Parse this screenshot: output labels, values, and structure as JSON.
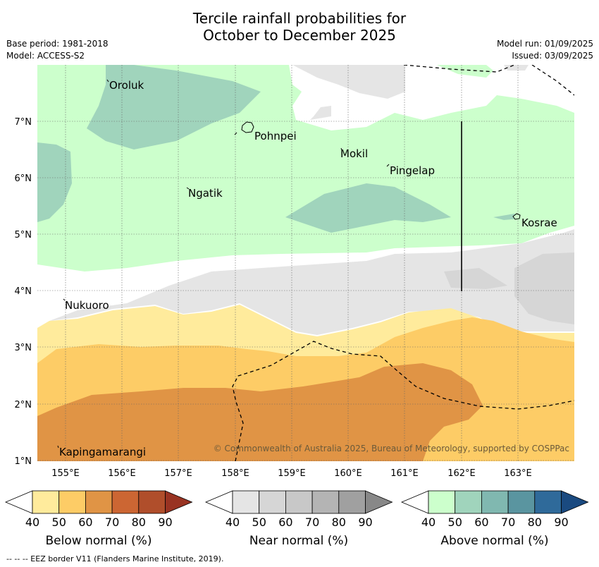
{
  "title_line1": "Tercile rainfall probabilities for",
  "title_line2": "October to December 2025",
  "meta": {
    "base_period": "Base period: 1981-2018",
    "model": "Model: ACCESS-S2",
    "model_run": "Model run: 01/09/2025",
    "issued": "Issued: 03/09/2025"
  },
  "map": {
    "lon_ticks": [
      "155°E",
      "156°E",
      "157°E",
      "158°E",
      "159°E",
      "160°E",
      "161°E",
      "162°E",
      "163°E"
    ],
    "lat_ticks": [
      "7°N",
      "6°N",
      "5°N",
      "4°N",
      "3°N",
      "2°N",
      "1°N"
    ],
    "places": [
      "Oroluk",
      "Pohnpei",
      "Mokil",
      "Pingelap",
      "Ngatik",
      "Kosrae",
      "Nukuoro",
      "Kapingamarangi"
    ],
    "copyright": "© Commonwealth of Australia 2025, Bureau of Meteorology, supported by COSPPac"
  },
  "colorbars": [
    {
      "title": "Below normal (%)",
      "ticks": [
        "40",
        "50",
        "60",
        "70",
        "80",
        "90"
      ],
      "colors": [
        "#ffffff",
        "#ffeb9c",
        "#fdcc66",
        "#e09445",
        "#cc6633",
        "#b04e2b",
        "#993322"
      ]
    },
    {
      "title": "Near normal (%)",
      "ticks": [
        "40",
        "50",
        "60",
        "70",
        "80",
        "90"
      ],
      "colors": [
        "#ffffff",
        "#e5e5e5",
        "#d6d6d6",
        "#c8c8c8",
        "#b4b4b4",
        "#a0a0a0",
        "#888888"
      ]
    },
    {
      "title": "Above normal (%)",
      "ticks": [
        "40",
        "50",
        "60",
        "70",
        "80",
        "90"
      ],
      "colors": [
        "#ffffff",
        "#ccffcc",
        "#a0d4bc",
        "#80b8b0",
        "#5a95a0",
        "#2f6a9a",
        "#1a4a80"
      ]
    }
  ],
  "footnote": "-- -- -- EEZ border V11 (Flanders Marine Institute, 2019)."
}
